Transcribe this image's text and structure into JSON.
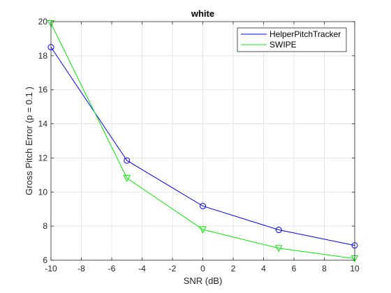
{
  "chart_data": {
    "type": "line",
    "title": "white",
    "xlabel": "SNR (dB)",
    "ylabel": "Gross Pitch Error (p = 0.1 )",
    "xlim": [
      -10,
      10
    ],
    "ylim": [
      6,
      20
    ],
    "xticks": [
      -10,
      -8,
      -6,
      -4,
      -2,
      0,
      2,
      4,
      6,
      8,
      10
    ],
    "yticks": [
      6,
      8,
      10,
      12,
      14,
      16,
      18,
      20
    ],
    "grid": true,
    "legend_position": "top-right",
    "series": [
      {
        "name": "HelperPitchTracker",
        "color": "#0000ff",
        "marker": "circle",
        "x": [
          -10,
          -5,
          0,
          5,
          10
        ],
        "y": [
          18.5,
          11.85,
          9.18,
          7.78,
          6.87
        ]
      },
      {
        "name": "SWIPE",
        "color": "#00ee00",
        "marker": "triangle-down",
        "x": [
          -10,
          -5,
          0,
          5,
          10
        ],
        "y": [
          19.9,
          10.82,
          7.8,
          6.7,
          6.1
        ]
      }
    ]
  }
}
